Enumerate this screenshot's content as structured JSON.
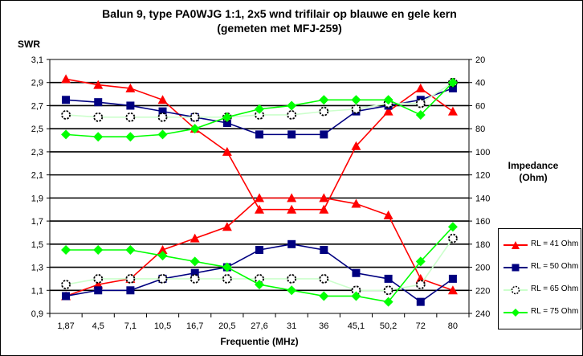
{
  "chart_data": {
    "type": "line",
    "title": "Balun 9, type PA0WJG 1:1, 2x5 wnd trifilair op blauwe en gele kern",
    "subtitle": "(gemeten met MFJ-259)",
    "xlabel": "Frequentie (MHz)",
    "ylabel_left": "SWR",
    "ylabel_right_line1": "Impedance",
    "ylabel_right_line2": "(Ohm)",
    "categories": [
      "1,87",
      "4,5",
      "7,1",
      "10,5",
      "16,7",
      "20,5",
      "27,6",
      "31",
      "36",
      "45,1",
      "50,2",
      "72",
      "80"
    ],
    "y_left": {
      "min": 0.9,
      "max": 3.1,
      "ticks": [
        "0,9",
        "1,1",
        "1,3",
        "1,5",
        "1,7",
        "1,9",
        "2,1",
        "2,3",
        "2,5",
        "2,7",
        "2,9",
        "3,1"
      ]
    },
    "y_right": {
      "min": 20,
      "max": 240,
      "inverted": true,
      "ticks": [
        "20",
        "40",
        "60",
        "80",
        "100",
        "120",
        "140",
        "160",
        "180",
        "200",
        "220",
        "240"
      ]
    },
    "grid": "horizontal",
    "legend_position": "right",
    "series": [
      {
        "name": "RL = 41 Ohm",
        "axis": "left",
        "color": "#ff0000",
        "marker": "triangle",
        "values": [
          1.05,
          1.15,
          1.2,
          1.45,
          1.55,
          1.65,
          1.9,
          1.9,
          1.9,
          1.85,
          1.75,
          1.2,
          1.1
        ]
      },
      {
        "name": "RL = 50 Ohm",
        "axis": "left",
        "color": "#000080",
        "marker": "square",
        "values": [
          1.05,
          1.1,
          1.1,
          1.2,
          1.25,
          1.3,
          1.45,
          1.5,
          1.45,
          1.25,
          1.2,
          1.0,
          1.2
        ]
      },
      {
        "name": "RL = 65 Ohm",
        "axis": "left",
        "color": "#ccffcc",
        "marker": "circle",
        "values": [
          1.15,
          1.2,
          1.2,
          1.2,
          1.2,
          1.2,
          1.2,
          1.2,
          1.2,
          1.1,
          1.1,
          1.15,
          1.55
        ]
      },
      {
        "name": "RL = 75 Ohm",
        "axis": "left",
        "color": "#00ff00",
        "marker": "diamond",
        "values": [
          1.45,
          1.45,
          1.45,
          1.4,
          1.35,
          1.3,
          1.15,
          1.1,
          1.05,
          1.05,
          1.0,
          1.35,
          1.65
        ]
      },
      {
        "name": "RL = 41 Ohm",
        "axis": "right",
        "color": "#ff0000",
        "marker": "triangle",
        "values": [
          37,
          42,
          45,
          55,
          80,
          100,
          150,
          150,
          150,
          95,
          65,
          45,
          65
        ]
      },
      {
        "name": "RL = 50 Ohm",
        "axis": "right",
        "color": "#000080",
        "marker": "square",
        "values": [
          55,
          57,
          60,
          65,
          70,
          75,
          85,
          85,
          85,
          65,
          60,
          55,
          45
        ]
      },
      {
        "name": "RL = 65 Ohm",
        "axis": "right",
        "color": "#ccffcc",
        "marker": "circle",
        "values": [
          68,
          70,
          70,
          70,
          70,
          70,
          68,
          68,
          65,
          63,
          58,
          58,
          40
        ]
      },
      {
        "name": "RL = 75 Ohm",
        "axis": "right",
        "color": "#00ff00",
        "marker": "diamond",
        "values": [
          85,
          87,
          87,
          85,
          80,
          70,
          63,
          60,
          55,
          55,
          55,
          68,
          40
        ]
      }
    ]
  },
  "legend": [
    {
      "label": "RL = 41 Ohm",
      "color": "#ff0000",
      "marker": "triangle"
    },
    {
      "label": "RL = 50 Ohm",
      "color": "#000080",
      "marker": "square"
    },
    {
      "label": "RL = 65 Ohm",
      "color": "#ccffcc",
      "marker": "circle"
    },
    {
      "label": "RL = 75 Ohm",
      "color": "#00ff00",
      "marker": "diamond"
    }
  ]
}
